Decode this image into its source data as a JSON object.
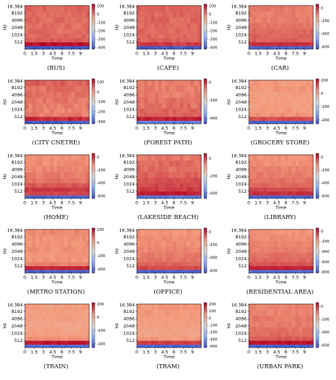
{
  "colors": {
    "cmap": [
      "#3b4cc0",
      "#8db0fe",
      "#dddddd",
      "#f49a7b",
      "#b40426"
    ],
    "title_color": "#000000"
  },
  "chart_data": [
    {
      "type": "heatmap",
      "title": "(BUS)",
      "xlabel": "Time",
      "ylabel": "Hz",
      "x_ticks": [
        "0",
        "1.5",
        "3",
        "4.5",
        "6",
        "7.5",
        "9"
      ],
      "y_ticks": [
        "16.384",
        "8192",
        "4096",
        "2048",
        "1024",
        "512"
      ],
      "colorbar_ticks": [
        "100",
        "0",
        "-100",
        "-200",
        "-300",
        "-400"
      ],
      "colorbar_range": [
        -420,
        120
      ],
      "band_db": [
        -400,
        110,
        40,
        30,
        25,
        25,
        30,
        30,
        35
      ]
    },
    {
      "type": "heatmap",
      "title": "(CAFE)",
      "xlabel": "Time",
      "ylabel": "Hz",
      "x_ticks": [
        "0",
        "1.5",
        "3",
        "4.5",
        "6",
        "7.5",
        "9"
      ],
      "y_ticks": [
        "16.384",
        "8192",
        "4096",
        "2048",
        "1024",
        "512"
      ],
      "colorbar_ticks": [
        "100",
        "0",
        "-100",
        "-200",
        "-300",
        "-400"
      ],
      "colorbar_range": [
        -420,
        120
      ],
      "band_db": [
        -400,
        70,
        35,
        30,
        30,
        30,
        30,
        30,
        35
      ]
    },
    {
      "type": "heatmap",
      "title": "(CAR)",
      "xlabel": "Time",
      "ylabel": "Hz",
      "x_ticks": [
        "0",
        "1.5",
        "3",
        "4.5",
        "6",
        "7.5",
        "9"
      ],
      "y_ticks": [
        "16.384",
        "8192",
        "4096",
        "2048",
        "1024",
        "512"
      ],
      "colorbar_ticks": [
        "0",
        "-200",
        "-400",
        "-600"
      ],
      "colorbar_range": [
        -640,
        60
      ],
      "band_db": [
        -600,
        10,
        -50,
        -50,
        -60,
        -70,
        -80,
        -80,
        -80
      ]
    },
    {
      "type": "heatmap",
      "title": "(CITY CNETRE)",
      "xlabel": "Time",
      "ylabel": "Hz",
      "x_ticks": [
        "0",
        "1.5",
        "3",
        "4.5",
        "6",
        "7.5",
        "9"
      ],
      "y_ticks": [
        "16.384",
        "8192",
        "4096",
        "2048",
        "1024",
        "512"
      ],
      "colorbar_ticks": [
        "100",
        "0",
        "-100",
        "-200",
        "-300"
      ],
      "colorbar_range": [
        -320,
        130
      ],
      "band_db": [
        -300,
        100,
        40,
        35,
        40,
        45,
        45,
        50,
        60
      ]
    },
    {
      "type": "heatmap",
      "title": "(FOREST PATH)",
      "xlabel": "Time",
      "ylabel": "Hz",
      "x_ticks": [
        "0",
        "1.5",
        "3",
        "4.5",
        "6",
        "7.5",
        "9"
      ],
      "y_ticks": [
        "16.384",
        "8192",
        "4096",
        "2048",
        "1024",
        "512"
      ],
      "colorbar_ticks": [
        "0",
        "-200",
        "-400"
      ],
      "colorbar_range": [
        -460,
        40
      ],
      "band_db": [
        -400,
        20,
        -40,
        -40,
        -50,
        -50,
        -60,
        -60,
        -60
      ]
    },
    {
      "type": "heatmap",
      "title": "(GROCERY STORE)",
      "xlabel": "Time",
      "ylabel": "Hz",
      "x_ticks": [
        "0",
        "1.5",
        "3",
        "4.5",
        "6",
        "7.5",
        "9"
      ],
      "y_ticks": [
        "16.384",
        "8192",
        "4096",
        "2048",
        "1024",
        "512"
      ],
      "colorbar_ticks": [
        "200",
        "0",
        "-200",
        "-400"
      ],
      "colorbar_range": [
        -460,
        220
      ],
      "band_db": [
        -420,
        140,
        60,
        50,
        40,
        40,
        40,
        50,
        50
      ]
    },
    {
      "type": "heatmap",
      "title": "(HOME)",
      "xlabel": "Time",
      "ylabel": "Hz",
      "x_ticks": [
        "0",
        "1.5",
        "3",
        "4.5",
        "6",
        "7.5",
        "9"
      ],
      "y_ticks": [
        "16.384",
        "8192",
        "4096",
        "2048",
        "1024",
        "512"
      ],
      "colorbar_ticks": [
        "0",
        "-200",
        "-400",
        "-600"
      ],
      "colorbar_range": [
        -640,
        60
      ],
      "band_db": [
        -600,
        -20,
        0,
        -40,
        -70,
        -80,
        -90,
        -100,
        -100
      ]
    },
    {
      "type": "heatmap",
      "title": "(LAKESIDE BEACH)",
      "xlabel": "Time",
      "ylabel": "Hz",
      "x_ticks": [
        "0",
        "1.5",
        "3",
        "4.5",
        "6",
        "7.5",
        "9"
      ],
      "y_ticks": [
        "16.384",
        "8192",
        "4096",
        "2048",
        "1024",
        "512"
      ],
      "colorbar_ticks": [
        "0",
        "-200",
        "-400"
      ],
      "colorbar_range": [
        -460,
        60
      ],
      "band_db": [
        -400,
        40,
        10,
        0,
        -10,
        -20,
        -30,
        -30,
        -40
      ]
    },
    {
      "type": "heatmap",
      "title": "(LIBRARY)",
      "xlabel": "Time",
      "ylabel": "Hz",
      "x_ticks": [
        "0",
        "1.5",
        "3",
        "4.5",
        "6",
        "7.5",
        "9"
      ],
      "y_ticks": [
        "16.384",
        "8192",
        "4096",
        "2048",
        "1024",
        "512"
      ],
      "colorbar_ticks": [
        "0",
        "-200",
        "-400",
        "-600"
      ],
      "colorbar_range": [
        -640,
        60
      ],
      "band_db": [
        -600,
        10,
        -20,
        -60,
        -70,
        -80,
        -90,
        -100,
        -100
      ]
    },
    {
      "type": "heatmap",
      "title": "(METRO STATION)",
      "xlabel": "Time",
      "ylabel": "Hz",
      "x_ticks": [
        "0",
        "1.5",
        "3",
        "4.5",
        "6",
        "7.5",
        "9"
      ],
      "y_ticks": [
        "16.384",
        "8192",
        "4096",
        "2048",
        "1024",
        "512"
      ],
      "colorbar_ticks": [
        "200",
        "0",
        "-200",
        "-400"
      ],
      "colorbar_range": [
        -460,
        220
      ],
      "band_db": [
        -420,
        180,
        80,
        60,
        50,
        60,
        60,
        60,
        70
      ]
    },
    {
      "type": "heatmap",
      "title": "(OFFICE)",
      "xlabel": "Time",
      "ylabel": "Hz",
      "x_ticks": [
        "0",
        "1.5",
        "3",
        "4.5",
        "6",
        "7.5",
        "9"
      ],
      "y_ticks": [
        "16.384",
        "8192",
        "4096",
        "2048",
        "1024",
        "512"
      ],
      "colorbar_ticks": [
        "0",
        "-200",
        "-400",
        "-600"
      ],
      "colorbar_range": [
        -640,
        60
      ],
      "band_db": [
        -600,
        -20,
        -50,
        -70,
        -80,
        -90,
        -100,
        -100,
        -110
      ]
    },
    {
      "type": "heatmap",
      "title": "(RESIDENTIAL AREA)",
      "xlabel": "Time",
      "ylabel": "Hz",
      "x_ticks": [
        "0",
        "1.5",
        "3",
        "4.5",
        "6",
        "7.5",
        "9"
      ],
      "y_ticks": [
        "16.384",
        "8192",
        "4096",
        "2048",
        "1024",
        "512"
      ],
      "colorbar_ticks": [
        "0",
        "-200",
        "-400",
        "-600",
        "-800"
      ],
      "colorbar_range": [
        -820,
        60
      ],
      "band_db": [
        -750,
        20,
        -60,
        -90,
        -100,
        -120,
        -130,
        -140,
        -150
      ]
    },
    {
      "type": "heatmap",
      "title": "(TRAIN)",
      "xlabel": "Time",
      "ylabel": "Hz",
      "x_ticks": [
        "0",
        "1.5",
        "3",
        "4.5",
        "6",
        "7.5",
        "9"
      ],
      "y_ticks": [
        "16.384",
        "8192",
        "4096",
        "2048",
        "1024",
        "512"
      ],
      "colorbar_ticks": [
        "200",
        "0",
        "-200",
        "-400"
      ],
      "colorbar_range": [
        -460,
        220
      ],
      "band_db": [
        -400,
        200,
        60,
        40,
        30,
        30,
        40,
        40,
        40
      ]
    },
    {
      "type": "heatmap",
      "title": "(TRAM)",
      "xlabel": "Time",
      "ylabel": "Hz",
      "x_ticks": [
        "0",
        "1.5",
        "3",
        "4.5",
        "6",
        "7.5",
        "9"
      ],
      "y_ticks": [
        "16.384",
        "8192",
        "4096",
        "2048",
        "1024",
        "512"
      ],
      "colorbar_ticks": [
        "200",
        "100",
        "0",
        "-100",
        "-200",
        "-300",
        "-400"
      ],
      "colorbar_range": [
        -420,
        220
      ],
      "band_db": [
        -380,
        160,
        60,
        40,
        40,
        50,
        50,
        60,
        60
      ]
    },
    {
      "type": "heatmap",
      "title": "(URBAN PARK)",
      "xlabel": "Time",
      "ylabel": "Hz",
      "x_ticks": [
        "0",
        "1.5",
        "3",
        "4.5",
        "6",
        "7.5",
        "9"
      ],
      "y_ticks": [
        "16.384",
        "8192",
        "4096",
        "2048",
        "1024",
        "512"
      ],
      "colorbar_ticks": [
        "0",
        "-200",
        "-400",
        "-600"
      ],
      "colorbar_range": [
        -640,
        60
      ],
      "band_db": [
        -600,
        40,
        -40,
        -60,
        -70,
        -80,
        -80,
        -90,
        -90
      ]
    }
  ]
}
